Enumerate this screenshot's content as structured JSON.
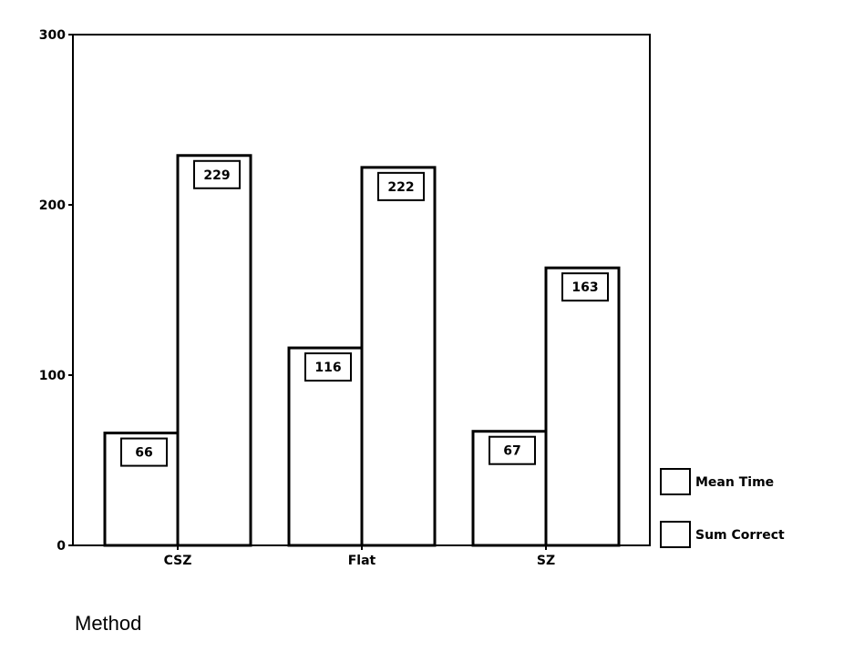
{
  "chart_data": {
    "type": "bar",
    "title": "",
    "xlabel": "Method",
    "ylabel": "",
    "categories": [
      "CSZ",
      "Flat",
      "SZ"
    ],
    "series": [
      {
        "name": "Mean Time",
        "values": [
          66,
          116,
          67
        ]
      },
      {
        "name": "Sum Correct",
        "values": [
          229,
          222,
          163
        ]
      }
    ],
    "ylim": [
      0,
      300
    ],
    "yticks": [
      "0",
      "100",
      "200",
      "300"
    ],
    "grid": false,
    "legend_position": "right",
    "colors": {
      "bar_fill": "#ffffff",
      "bar_stroke": "#000000"
    }
  }
}
